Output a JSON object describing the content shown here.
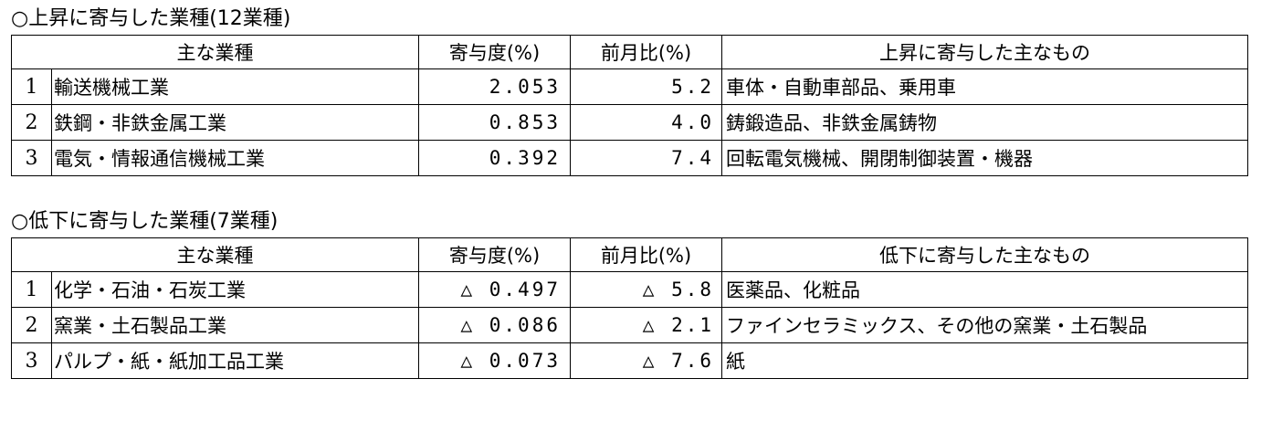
{
  "rise": {
    "title": "○上昇に寄与した業種(12業種)",
    "headers": {
      "industry": "主な業種",
      "contribution": "寄与度(%)",
      "mom": "前月比(%)",
      "items": "上昇に寄与した主なもの"
    },
    "rows": [
      {
        "num": "1",
        "industry": "輸送機械工業",
        "contribution": "2.053",
        "mom": "5.2",
        "items": "車体・自動車部品、乗用車"
      },
      {
        "num": "2",
        "industry": "鉄鋼・非鉄金属工業",
        "contribution": "0.853",
        "mom": "4.0",
        "items": "鋳鍛造品、非鉄金属鋳物"
      },
      {
        "num": "3",
        "industry": "電気・情報通信機械工業",
        "contribution": "0.392",
        "mom": "7.4",
        "items": "回転電気機械、開閉制御装置・機器"
      }
    ]
  },
  "fall": {
    "title": "○低下に寄与した業種(7業種)",
    "headers": {
      "industry": "主な業種",
      "contribution": "寄与度(%)",
      "mom": "前月比(%)",
      "items": "低下に寄与した主なもの"
    },
    "rows": [
      {
        "num": "1",
        "industry": "化学・石油・石炭工業",
        "contribution": "△ 0.497",
        "mom": "△ 5.8",
        "items": "医薬品、化粧品"
      },
      {
        "num": "2",
        "industry": "窯業・土石製品工業",
        "contribution": "△ 0.086",
        "mom": "△ 2.1",
        "items": "ファインセラミックス、その他の窯業・土石製品"
      },
      {
        "num": "3",
        "industry": "パルプ・紙・紙加工品工業",
        "contribution": "△ 0.073",
        "mom": "△ 7.6",
        "items": "紙"
      }
    ]
  }
}
